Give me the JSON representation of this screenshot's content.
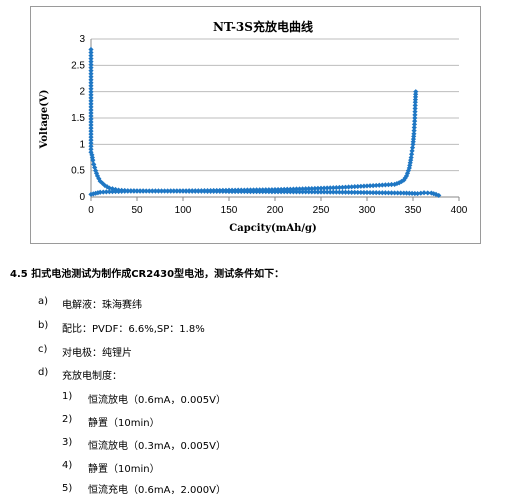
{
  "chart_data": {
    "type": "scatter",
    "title": "NT-3S充放电曲线",
    "xlabel": "Capcity(mAh/g)",
    "ylabel": "Voltage(V)",
    "xlim": [
      0,
      400
    ],
    "ylim": [
      0,
      3
    ],
    "x_ticks": [
      "0",
      "50",
      "100",
      "150",
      "200",
      "250",
      "300",
      "350",
      "400"
    ],
    "y_ticks": [
      "0",
      "0.5",
      "1",
      "1.5",
      "2",
      "2.5",
      "3"
    ],
    "grid": "horizontal",
    "marker_color": "#1f77c4",
    "series": [
      {
        "points": [
          [
            0,
            2.8
          ],
          [
            0,
            0.85
          ],
          [
            1,
            0.8
          ],
          [
            2,
            0.7
          ],
          [
            3,
            0.62
          ],
          [
            5,
            0.5
          ],
          [
            7,
            0.4
          ],
          [
            10,
            0.3
          ],
          [
            15,
            0.22
          ],
          [
            20,
            0.17
          ],
          [
            30,
            0.13
          ],
          [
            40,
            0.12
          ],
          [
            60,
            0.115
          ],
          [
            100,
            0.11
          ],
          [
            150,
            0.105
          ],
          [
            200,
            0.1
          ],
          [
            250,
            0.095
          ],
          [
            300,
            0.085
          ],
          [
            340,
            0.075
          ],
          [
            355,
            0.065
          ],
          [
            362,
            0.08
          ],
          [
            370,
            0.075
          ],
          [
            375,
            0.05
          ],
          [
            378,
            0.03
          ]
        ]
      },
      {
        "points": [
          [
            0,
            0.05
          ],
          [
            5,
            0.07
          ],
          [
            10,
            0.09
          ],
          [
            20,
            0.1
          ],
          [
            40,
            0.11
          ],
          [
            80,
            0.115
          ],
          [
            120,
            0.12
          ],
          [
            160,
            0.13
          ],
          [
            200,
            0.14
          ],
          [
            240,
            0.16
          ],
          [
            270,
            0.18
          ],
          [
            300,
            0.21
          ],
          [
            320,
            0.23
          ],
          [
            330,
            0.24
          ],
          [
            335,
            0.27
          ],
          [
            340,
            0.32
          ],
          [
            343,
            0.4
          ],
          [
            346,
            0.55
          ],
          [
            348,
            0.75
          ],
          [
            350,
            1.0
          ],
          [
            351,
            1.2
          ],
          [
            352,
            1.5
          ],
          [
            352.5,
            1.8
          ],
          [
            353,
            2.0
          ]
        ]
      }
    ]
  },
  "doc": {
    "heading": "4.5  扣式电池测试为制作成CR2430型电池，测试条件如下：",
    "items": [
      {
        "letter": "a)",
        "text": "电解液：珠海赛纬"
      },
      {
        "letter": "b)",
        "text": "配比：PVDF：6.6%,SP：1.8%"
      },
      {
        "letter": "c)",
        "text": "对电极：纯锂片"
      },
      {
        "letter": "d)",
        "text": "充放电制度："
      }
    ],
    "steps": [
      {
        "num": "1)",
        "text": "恒流放电（0.6mA，0.005V）"
      },
      {
        "num": "2)",
        "text": "静置（10min）"
      },
      {
        "num": "3)",
        "text": "恒流放电（0.3mA，0.005V）"
      },
      {
        "num": "4)",
        "text": "静置（10min）"
      },
      {
        "num": "5)",
        "text": "恒流充电（0.6mA，2.000V）"
      }
    ]
  }
}
